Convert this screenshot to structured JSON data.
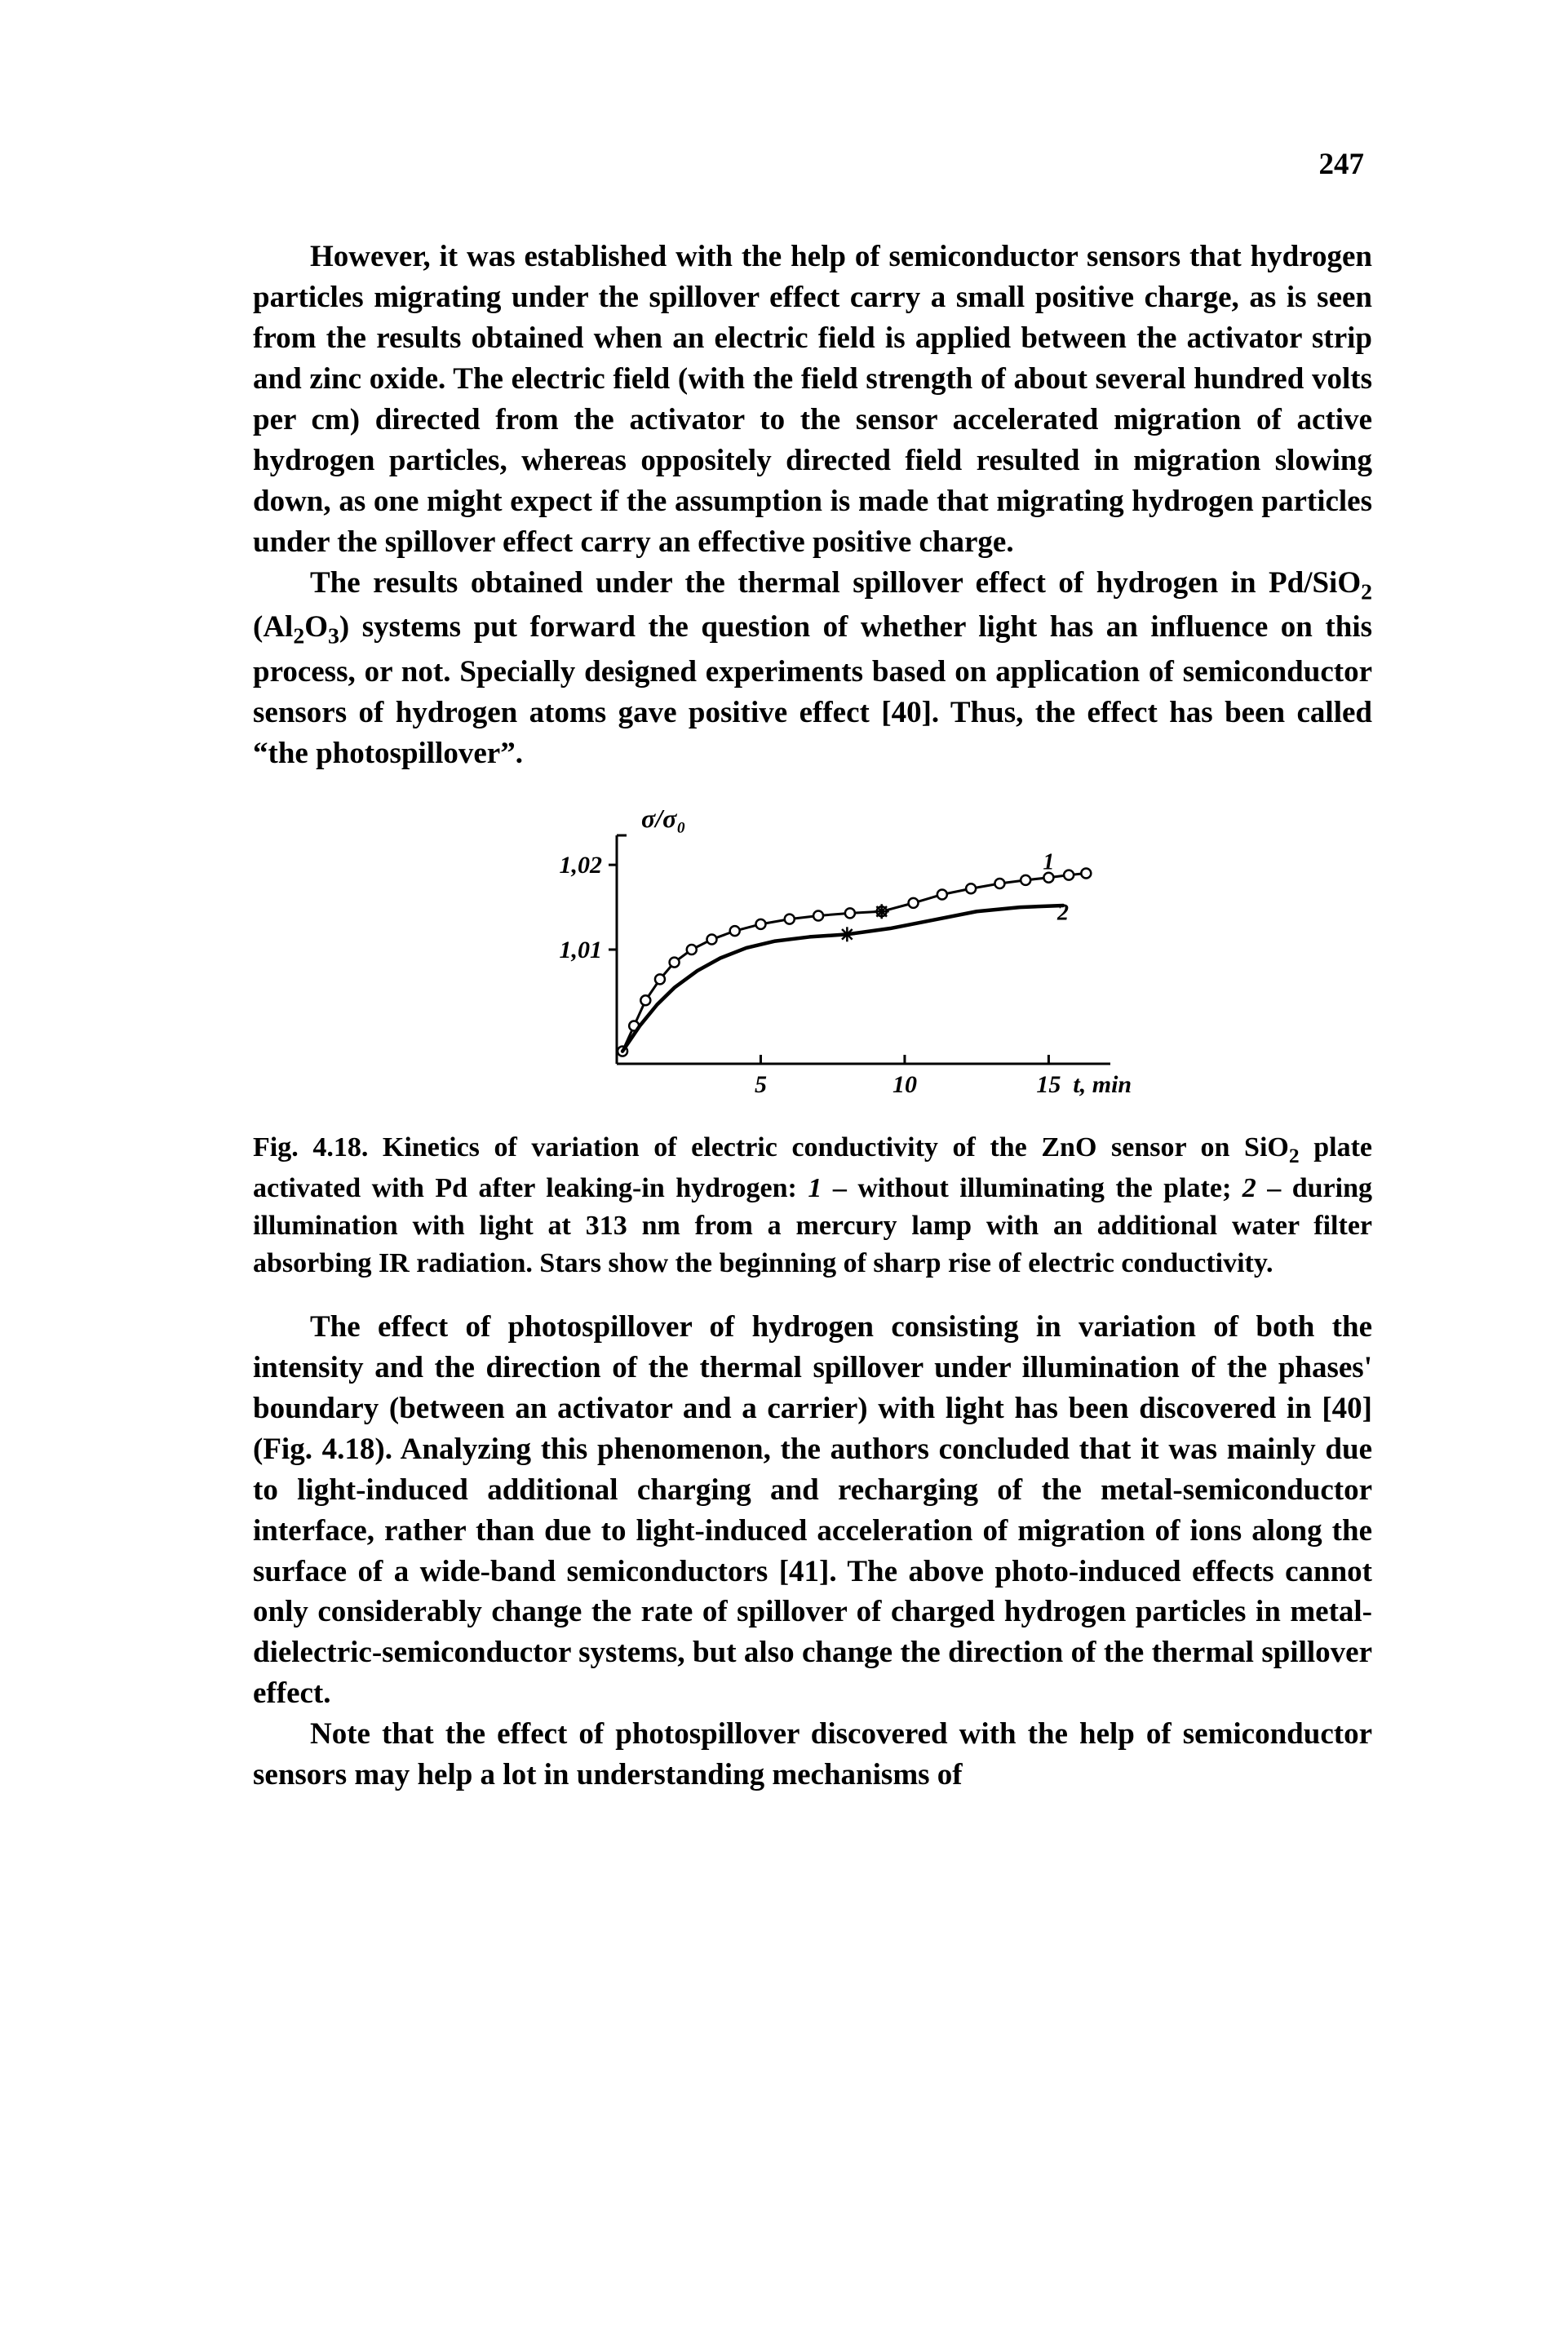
{
  "page_number": "247",
  "paragraphs": {
    "p1": "However, it was established with the help of semiconductor sensors that hydrogen particles migrating under the spillover effect carry a small positive charge, as is seen from the results obtained when an electric field is applied between the activator strip and zinc oxide. The electric field (with the field strength of about several hundred volts per cm) directed from the activator to the sensor accelerated migration of active hydrogen particles, whereas oppositely directed field resulted in migration slowing down, as one might expect if the assumption is made that migrating hydrogen particles under the spillover effect carry an effective positive charge.",
    "p2_a": "The results obtained under the thermal spillover effect of hydrogen in Pd/SiO",
    "p2_b": " (Al",
    "p2_c": "O",
    "p2_d": ") systems put forward the question of whether light has an influence on this process, or not. Specially designed experiments based on application of semiconductor sensors of hydrogen atoms gave positive effect [40]. Thus, the effect has been called “the photospillover”.",
    "p3": "The effect of photospillover of hydrogen consisting in variation of both the intensity and the direction of the thermal spillover under illumination of the phases' boundary (between an activator and a carrier) with light has been discovered in [40] (Fig. 4.18). Analyzing this phenomenon, the authors concluded that it was mainly due to light-induced additional charging and recharging of the metal-semiconductor interface, rather than due to light-induced acceleration of migration of ions along the surface of a wide-band semiconductors [41]. The above photo-induced effects cannot only considerably change the rate of spillover of charged hydrogen particles in metal-dielectric-semiconductor systems, but also change the direction of the thermal spillover effect.",
    "p4": "Note that the effect of photospillover discovered with the help of semiconductor sensors may help a lot in understanding mechanisms of"
  },
  "caption": {
    "c1": "Fig. 4.18. Kinetics of variation of electric conductivity of the ZnO sensor on SiO",
    "c2": " plate activated with Pd after leaking-in hydrogen: ",
    "c3": " – without illuminating the plate; ",
    "c4": " – during illumination with light at 313 nm from a mercury lamp with an additional water filter absorbing IR radiation. Stars show the beginning of sharp rise of electric conductivity.",
    "one": "1",
    "two": "2"
  },
  "chart": {
    "type": "line",
    "y_label": "σ/σ₀",
    "x_label": "t, min",
    "x_ticks": [
      5,
      10,
      15
    ],
    "y_ticks": [
      1.01,
      1.02
    ],
    "y_tick_labels": [
      "1,01",
      "1,02"
    ],
    "xlim": [
      0,
      17
    ],
    "ylim": [
      0.997,
      1.023
    ],
    "series": [
      {
        "name": "1",
        "label_pos": {
          "x": 14.8,
          "y": 1.0195
        },
        "marker": "circle",
        "star_at": {
          "x": 9.2,
          "y": 1.0145
        },
        "points": [
          {
            "x": 0.2,
            "y": 0.998
          },
          {
            "x": 0.6,
            "y": 1.001
          },
          {
            "x": 1.0,
            "y": 1.004
          },
          {
            "x": 1.5,
            "y": 1.0065
          },
          {
            "x": 2.0,
            "y": 1.0085
          },
          {
            "x": 2.6,
            "y": 1.01
          },
          {
            "x": 3.3,
            "y": 1.0112
          },
          {
            "x": 4.1,
            "y": 1.0122
          },
          {
            "x": 5.0,
            "y": 1.013
          },
          {
            "x": 6.0,
            "y": 1.0136
          },
          {
            "x": 7.0,
            "y": 1.014
          },
          {
            "x": 8.1,
            "y": 1.0143
          },
          {
            "x": 9.2,
            "y": 1.0145
          },
          {
            "x": 10.3,
            "y": 1.0155
          },
          {
            "x": 11.3,
            "y": 1.0165
          },
          {
            "x": 12.3,
            "y": 1.0172
          },
          {
            "x": 13.3,
            "y": 1.0178
          },
          {
            "x": 14.2,
            "y": 1.0182
          },
          {
            "x": 15.0,
            "y": 1.0185
          },
          {
            "x": 15.7,
            "y": 1.0188
          },
          {
            "x": 16.3,
            "y": 1.019
          }
        ]
      },
      {
        "name": "2",
        "label_pos": {
          "x": 15.3,
          "y": 1.0135
        },
        "marker": "none",
        "star_at": {
          "x": 8.0,
          "y": 1.0118
        },
        "line_width_boost": true,
        "points": [
          {
            "x": 0.2,
            "y": 0.998
          },
          {
            "x": 0.8,
            "y": 1.001
          },
          {
            "x": 1.4,
            "y": 1.0035
          },
          {
            "x": 2.0,
            "y": 1.0055
          },
          {
            "x": 2.8,
            "y": 1.0075
          },
          {
            "x": 3.6,
            "y": 1.009
          },
          {
            "x": 4.5,
            "y": 1.0102
          },
          {
            "x": 5.5,
            "y": 1.011
          },
          {
            "x": 6.7,
            "y": 1.0115
          },
          {
            "x": 8.0,
            "y": 1.0118
          },
          {
            "x": 9.5,
            "y": 1.0125
          },
          {
            "x": 11.0,
            "y": 1.0135
          },
          {
            "x": 12.5,
            "y": 1.0145
          },
          {
            "x": 14.0,
            "y": 1.015
          },
          {
            "x": 15.5,
            "y": 1.0152
          }
        ]
      }
    ],
    "axis_color": "#000000",
    "line_color": "#000000",
    "marker_fill": "#ffffff",
    "marker_stroke": "#000000",
    "background_color": "#ffffff",
    "font_family": "serif",
    "axis_fontsize": 30,
    "label_fontweight": "bold",
    "stroke_width": 3
  }
}
